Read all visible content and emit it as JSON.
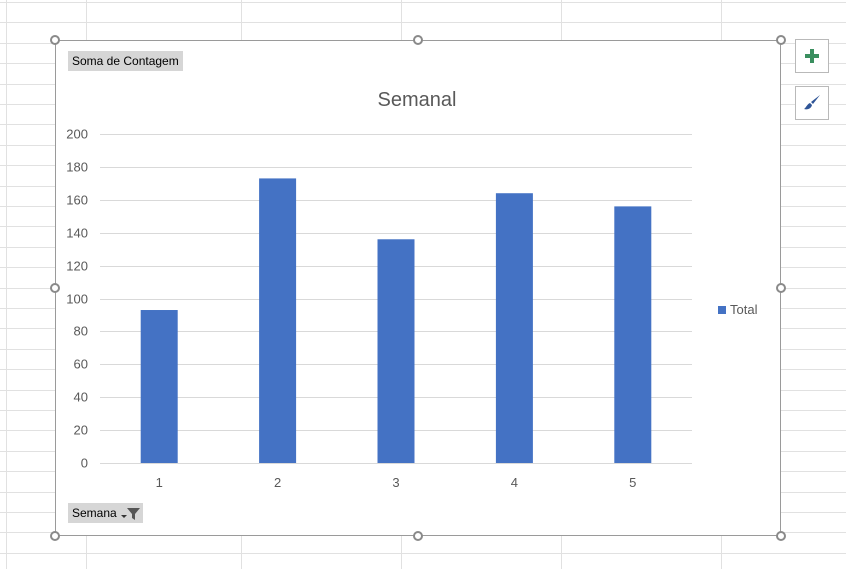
{
  "field_buttons": {
    "value_field": "Soma de Contagem",
    "axis_field": "Semana"
  },
  "side_buttons": {
    "chart_elements_icon": "plus-icon",
    "chart_styles_icon": "paintbrush-icon"
  },
  "colors": {
    "bar": "#4472C4",
    "add_icon": "#3a8f5f",
    "brush_icon": "#2f5597"
  },
  "chart_data": {
    "type": "bar",
    "title": "Semanal",
    "categories": [
      "1",
      "2",
      "3",
      "4",
      "5"
    ],
    "series": [
      {
        "name": "Total",
        "values": [
          93,
          173,
          136,
          164,
          156
        ]
      }
    ],
    "ylim": [
      0,
      200
    ],
    "yticks": [
      0,
      20,
      40,
      60,
      80,
      100,
      120,
      140,
      160,
      180,
      200
    ],
    "grid": true,
    "legend_position": "right"
  }
}
